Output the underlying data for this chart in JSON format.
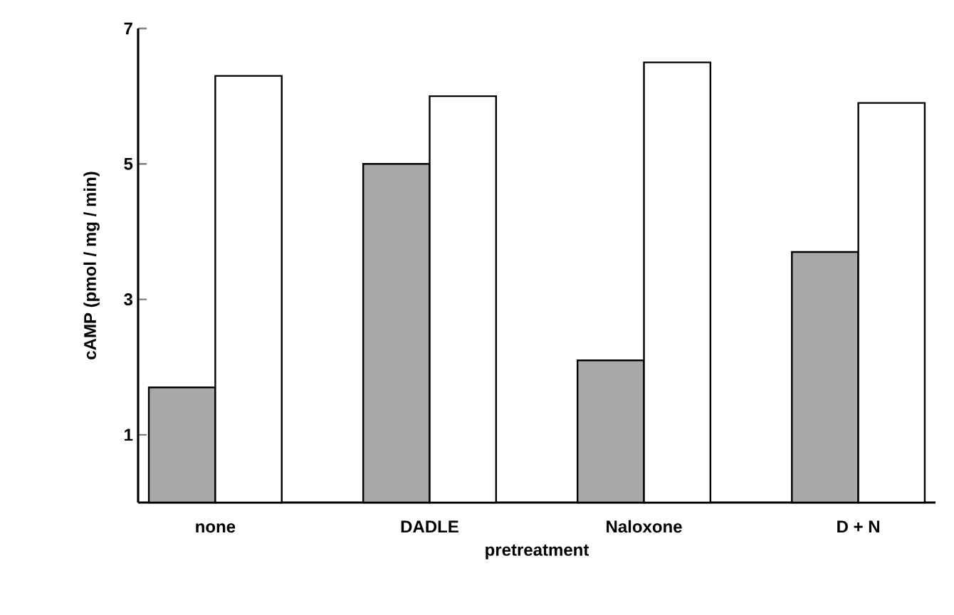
{
  "chart_data": {
    "type": "bar",
    "ylabel": "cAMP (pmol / mg / min)",
    "xlabel": "pretreatment",
    "categories": [
      "none",
      "DADLE",
      "Naloxone",
      "D + N"
    ],
    "series": [
      {
        "color": "#a8a8a8",
        "values": [
          1.7,
          5.0,
          2.1,
          3.7
        ]
      },
      {
        "color": "#ffffff",
        "values": [
          6.3,
          6.0,
          6.5,
          5.9
        ]
      }
    ],
    "ylim": [
      0,
      7
    ],
    "yticks": [
      1,
      3,
      5,
      7
    ],
    "grid": false
  }
}
